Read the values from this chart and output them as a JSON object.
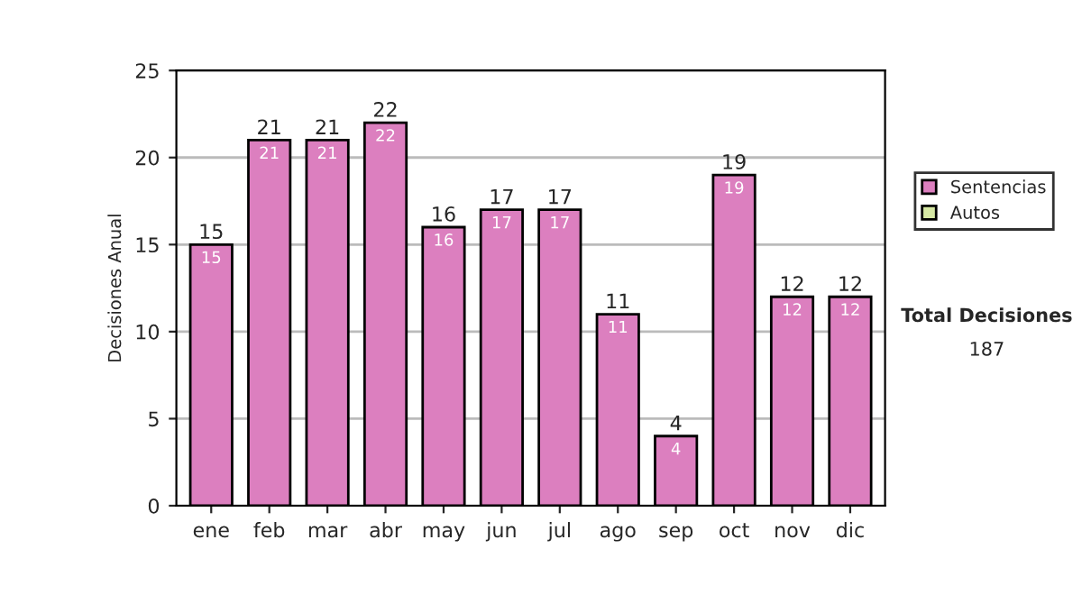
{
  "chart_data": {
    "type": "bar",
    "stacked": true,
    "ylabel": "Decisiones Anual",
    "categories": [
      "ene",
      "feb",
      "mar",
      "abr",
      "may",
      "jun",
      "jul",
      "ago",
      "sep",
      "oct",
      "nov",
      "dic"
    ],
    "series": [
      {
        "name": "Sentencias",
        "color": "#dc7fbf",
        "values": [
          15,
          21,
          21,
          22,
          16,
          17,
          17,
          11,
          4,
          19,
          12,
          12
        ],
        "value_labels": [
          "15",
          "21",
          "21",
          "22",
          "16",
          "17",
          "17",
          "11",
          "4",
          "19",
          "12",
          "12"
        ]
      },
      {
        "name": "Autos",
        "color": "#d6e8a4",
        "values": [
          0,
          0,
          0,
          0,
          0,
          0,
          0,
          0,
          0,
          0,
          0,
          0
        ]
      }
    ],
    "totals": [
      "15",
      "21",
      "21",
      "22",
      "16",
      "17",
      "17",
      "11",
      "4",
      "19",
      "12",
      "12"
    ],
    "ylim": [
      0,
      25
    ],
    "yticks": [
      0,
      5,
      10,
      15,
      20,
      25
    ],
    "grid": "y",
    "legend": "right",
    "annotations": [
      "Total Decisiones",
      "187"
    ]
  }
}
